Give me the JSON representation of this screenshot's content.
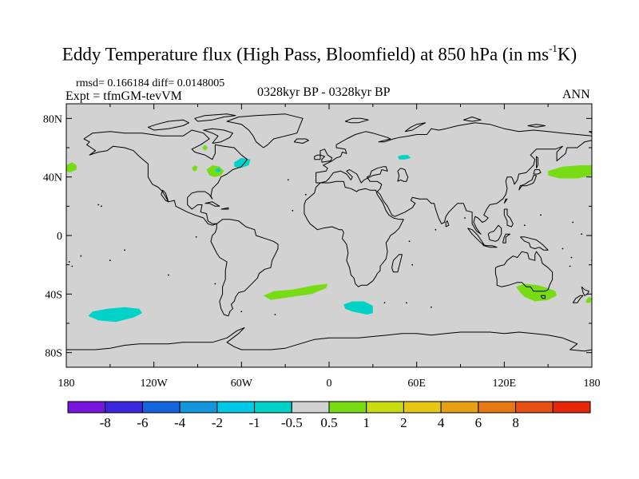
{
  "title": {
    "main": "Eddy Temperature flux (High Pass, Bloomfield) at 850 hPa (in ms",
    "sup": "-1",
    "tail": "K)"
  },
  "stats": "rmsd= 0.166184 diff= 0.0148005",
  "expt": "Expt = tfmGM-tevVM",
  "period": "0328kyr BP - 0328kyr BP",
  "season": "ANN",
  "map": {
    "lon_range": [
      -180,
      180
    ],
    "lat_range": [
      -90,
      90
    ],
    "land_fill": "#d2d2d2",
    "coastline_color": "#000000",
    "lat_ticks": [
      {
        "lat": 80,
        "label": "80N"
      },
      {
        "lat": 40,
        "label": "40N"
      },
      {
        "lat": 0,
        "label": "0"
      },
      {
        "lat": -40,
        "label": "40S"
      },
      {
        "lat": -80,
        "label": "80S"
      }
    ],
    "lon_ticks": [
      {
        "lon": -180,
        "label": "180"
      },
      {
        "lon": -120,
        "label": "120W"
      },
      {
        "lon": -60,
        "label": "60W"
      },
      {
        "lon": 0,
        "label": "0"
      },
      {
        "lon": 60,
        "label": "60E"
      },
      {
        "lon": 120,
        "label": "120E"
      },
      {
        "lon": 180,
        "label": "180"
      }
    ],
    "regions": [
      {
        "name": "north-pacific-east-positive",
        "color": "#78dc14",
        "poly": [
          [
            -180,
            48
          ],
          [
            -176,
            50
          ],
          [
            -173,
            48
          ],
          [
            -173,
            45
          ],
          [
            -178,
            43
          ],
          [
            -180,
            44
          ]
        ]
      },
      {
        "name": "north-pacific-west-positive",
        "color": "#78dc14",
        "poly": [
          [
            150,
            44
          ],
          [
            160,
            47
          ],
          [
            172,
            48
          ],
          [
            180,
            48
          ],
          [
            180,
            41
          ],
          [
            170,
            39
          ],
          [
            158,
            39
          ],
          [
            150,
            41
          ]
        ]
      },
      {
        "name": "great-lakes-positive",
        "color": "#78dc14",
        "poly": [
          [
            -84,
            45
          ],
          [
            -80,
            48
          ],
          [
            -75,
            47
          ],
          [
            -72,
            44
          ],
          [
            -74,
            41
          ],
          [
            -78,
            40
          ],
          [
            -82,
            41
          ]
        ]
      },
      {
        "name": "great-lakes-negative",
        "color": "#00d2c8",
        "poly": [
          [
            -78,
            44
          ],
          [
            -77,
            46
          ],
          [
            -75,
            46
          ],
          [
            -74,
            44
          ],
          [
            -76,
            43
          ]
        ]
      },
      {
        "name": "hudson-positive",
        "color": "#78dc14",
        "poly": [
          [
            -87,
            60
          ],
          [
            -85,
            62
          ],
          [
            -83,
            60
          ],
          [
            -85,
            58
          ]
        ]
      },
      {
        "name": "labrador-sea-negative",
        "color": "#00d2c8",
        "poly": [
          [
            -65,
            50
          ],
          [
            -60,
            53
          ],
          [
            -54,
            52
          ],
          [
            -55,
            48
          ],
          [
            -61,
            46
          ],
          [
            -65,
            47
          ]
        ]
      },
      {
        "name": "mexico-positive",
        "color": "#78dc14",
        "poly": [
          [
            -94,
            46
          ],
          [
            -92,
            48
          ],
          [
            -90,
            47
          ],
          [
            -91,
            44
          ],
          [
            -93,
            44
          ]
        ]
      },
      {
        "name": "caspian-negative",
        "color": "#00d2c8",
        "poly": [
          [
            47,
            54
          ],
          [
            50,
            55
          ],
          [
            54,
            55
          ],
          [
            56,
            53
          ],
          [
            52,
            52
          ],
          [
            48,
            52
          ]
        ]
      },
      {
        "name": "south-pacific-negative",
        "color": "#00d2c8",
        "poly": [
          [
            -162,
            -52
          ],
          [
            -152,
            -50
          ],
          [
            -140,
            -49
          ],
          [
            -130,
            -50
          ],
          [
            -128,
            -53
          ],
          [
            -134,
            -56
          ],
          [
            -146,
            -59
          ],
          [
            -158,
            -58
          ],
          [
            -165,
            -55
          ]
        ]
      },
      {
        "name": "south-atlantic-positive",
        "color": "#78dc14",
        "poly": [
          [
            -45,
            -41
          ],
          [
            -38,
            -38
          ],
          [
            -25,
            -37
          ],
          [
            -10,
            -34
          ],
          [
            -1,
            -33
          ],
          [
            -2,
            -36
          ],
          [
            -12,
            -40
          ],
          [
            -26,
            -42
          ],
          [
            -40,
            -44
          ]
        ]
      },
      {
        "name": "south-africa-negative",
        "color": "#00d2c8",
        "poly": [
          [
            10,
            -47
          ],
          [
            16,
            -45
          ],
          [
            24,
            -45
          ],
          [
            30,
            -48
          ],
          [
            30,
            -53
          ],
          [
            26,
            -54
          ],
          [
            16,
            -52
          ],
          [
            11,
            -50
          ]
        ]
      },
      {
        "name": "australia-positive",
        "color": "#78dc14",
        "poly": [
          [
            128,
            -35
          ],
          [
            134,
            -33
          ],
          [
            143,
            -34
          ],
          [
            150,
            -36
          ],
          [
            155,
            -38
          ],
          [
            156,
            -41
          ],
          [
            150,
            -44
          ],
          [
            141,
            -45
          ],
          [
            134,
            -42
          ],
          [
            131,
            -39
          ]
        ]
      },
      {
        "name": "new-zealand-positive",
        "color": "#78dc14",
        "poly": [
          [
            176,
            -44
          ],
          [
            178,
            -42
          ],
          [
            180,
            -43
          ],
          [
            179,
            -46
          ],
          [
            176,
            -46
          ]
        ]
      }
    ]
  },
  "colorbar": {
    "colors": [
      "#7814dc",
      "#3c28dc",
      "#1464dc",
      "#1496dc",
      "#00c8e6",
      "#00d2c8",
      "#d2d2d2",
      "#78dc14",
      "#c8dc14",
      "#e6c814",
      "#e6a014",
      "#e67814",
      "#e65014",
      "#e6280a"
    ],
    "labels": [
      "-8",
      "-6",
      "-4",
      "-2",
      "-1",
      "-0.5",
      "0.5",
      "1",
      "2",
      "4",
      "6",
      "8"
    ]
  }
}
